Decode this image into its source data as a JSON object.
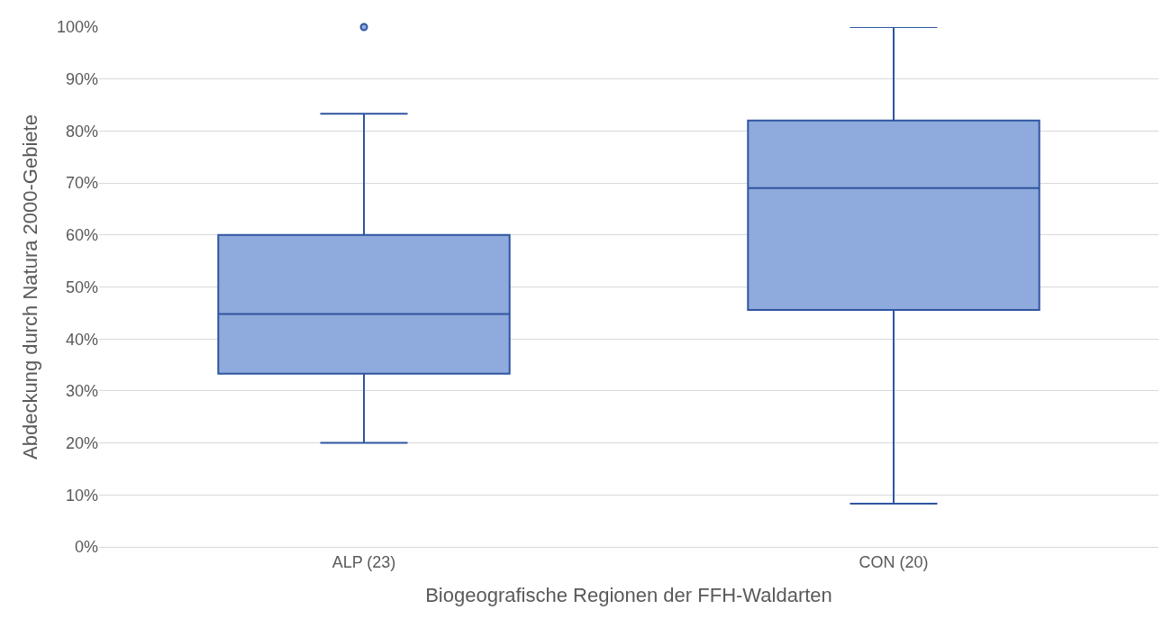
{
  "chart_data": {
    "type": "box",
    "xlabel": "Biogeografische Regionen der FFH-Waldarten",
    "ylabel": "Abdeckung durch Natura 2000-Gebiete",
    "categories": [
      "ALP (23)",
      "CON (20)"
    ],
    "series": [
      {
        "color": "#8faadc",
        "boxes": [
          {
            "low": 20,
            "q1": 33.3,
            "median": 44.8,
            "q3": 60,
            "high": 83.3,
            "outliers": [
              100
            ]
          },
          {
            "low": 8.3,
            "q1": 45.6,
            "median": 69,
            "q3": 82,
            "high": 100
          }
        ]
      }
    ],
    "ylim": [
      0,
      100
    ],
    "yticks": [
      {
        "value": 0,
        "label": "0%"
      },
      {
        "value": 10,
        "label": "10%"
      },
      {
        "value": 20,
        "label": "20%"
      },
      {
        "value": 30,
        "label": "30%"
      },
      {
        "value": 40,
        "label": "40%"
      },
      {
        "value": 50,
        "label": "50%"
      },
      {
        "value": 60,
        "label": "60%"
      },
      {
        "value": 70,
        "label": "70%"
      },
      {
        "value": 80,
        "label": "80%"
      },
      {
        "value": 90,
        "label": "90%"
      },
      {
        "value": 100,
        "label": "100%"
      }
    ],
    "grid": "y"
  }
}
